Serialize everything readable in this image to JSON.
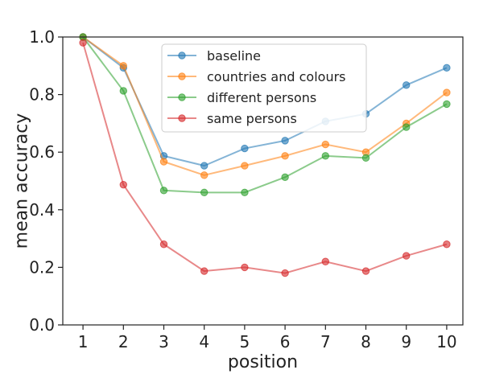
{
  "chart_data": {
    "type": "line",
    "title": "",
    "xlabel": "position",
    "ylabel": "mean accuracy",
    "x": [
      1,
      2,
      3,
      4,
      5,
      6,
      7,
      8,
      9,
      10
    ],
    "xticks": [
      "1",
      "2",
      "3",
      "4",
      "5",
      "6",
      "7",
      "8",
      "9",
      "10"
    ],
    "yticks": [
      "0.0",
      "0.2",
      "0.4",
      "0.6",
      "0.8",
      "1.0"
    ],
    "xlim": [
      0.5,
      10.4
    ],
    "ylim": [
      0.0,
      1.0
    ],
    "grid": false,
    "legend_position": "top-center",
    "series": [
      {
        "name": "baseline",
        "color": "#1f77b4",
        "values": [
          1.0,
          0.893,
          0.587,
          0.553,
          0.613,
          0.64,
          0.707,
          0.733,
          0.833,
          0.893
        ]
      },
      {
        "name": "countries and colours",
        "color": "#ff7f0e",
        "values": [
          1.0,
          0.9,
          0.567,
          0.52,
          0.553,
          0.587,
          0.627,
          0.6,
          0.7,
          0.807
        ]
      },
      {
        "name": "different persons",
        "color": "#2ca02c",
        "values": [
          1.0,
          0.813,
          0.467,
          0.46,
          0.46,
          0.513,
          0.587,
          0.58,
          0.687,
          0.767
        ]
      },
      {
        "name": "same persons",
        "color": "#d62728",
        "values": [
          0.98,
          0.487,
          0.28,
          0.187,
          0.2,
          0.18,
          0.22,
          0.187,
          0.24,
          0.28
        ]
      }
    ]
  }
}
